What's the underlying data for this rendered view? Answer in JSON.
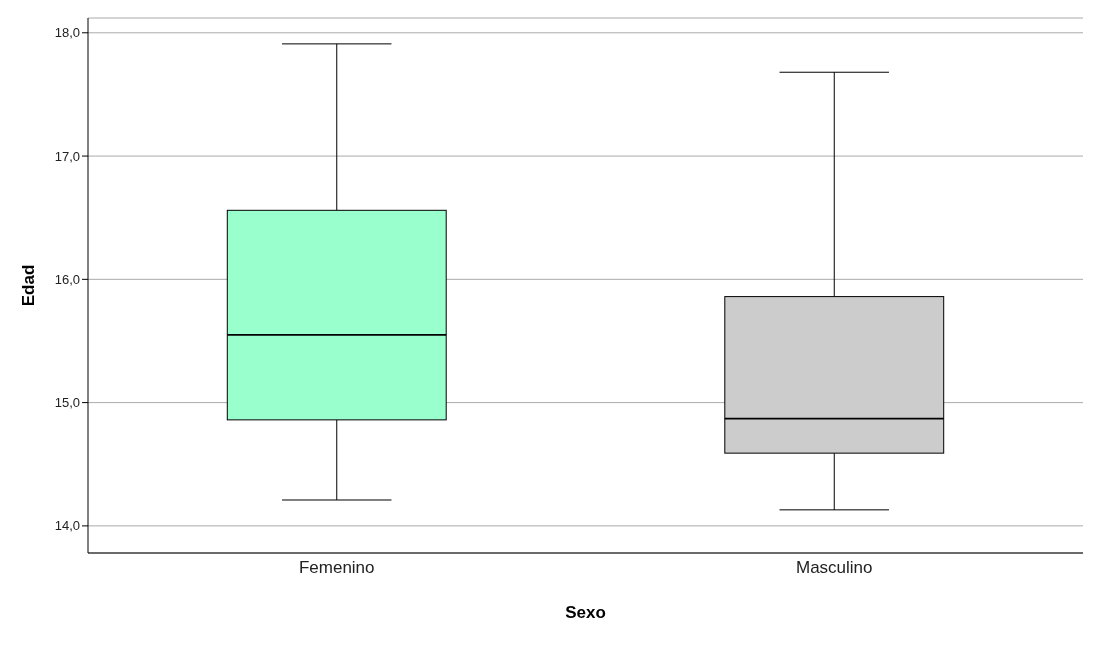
{
  "chart_data": {
    "type": "box",
    "xlabel": "Sexo",
    "ylabel": "Edad",
    "categories": [
      "Femenino",
      "Masculino"
    ],
    "colors": [
      "#99ffcc",
      "#cccccc"
    ],
    "boxes": [
      {
        "low": 14.21,
        "q1": 14.86,
        "median": 15.55,
        "q3": 16.56,
        "high": 17.91
      },
      {
        "low": 14.13,
        "q1": 14.59,
        "median": 14.87,
        "q3": 15.86,
        "high": 17.68
      }
    ],
    "ylim": [
      13.78,
      18.12
    ],
    "yticks": [
      {
        "value": 14,
        "label": "14,0"
      },
      {
        "value": 15,
        "label": "15,0"
      },
      {
        "value": 16,
        "label": "16,0"
      },
      {
        "value": 17,
        "label": "17,0"
      },
      {
        "value": 18,
        "label": "18,0"
      }
    ],
    "grid": "y"
  }
}
